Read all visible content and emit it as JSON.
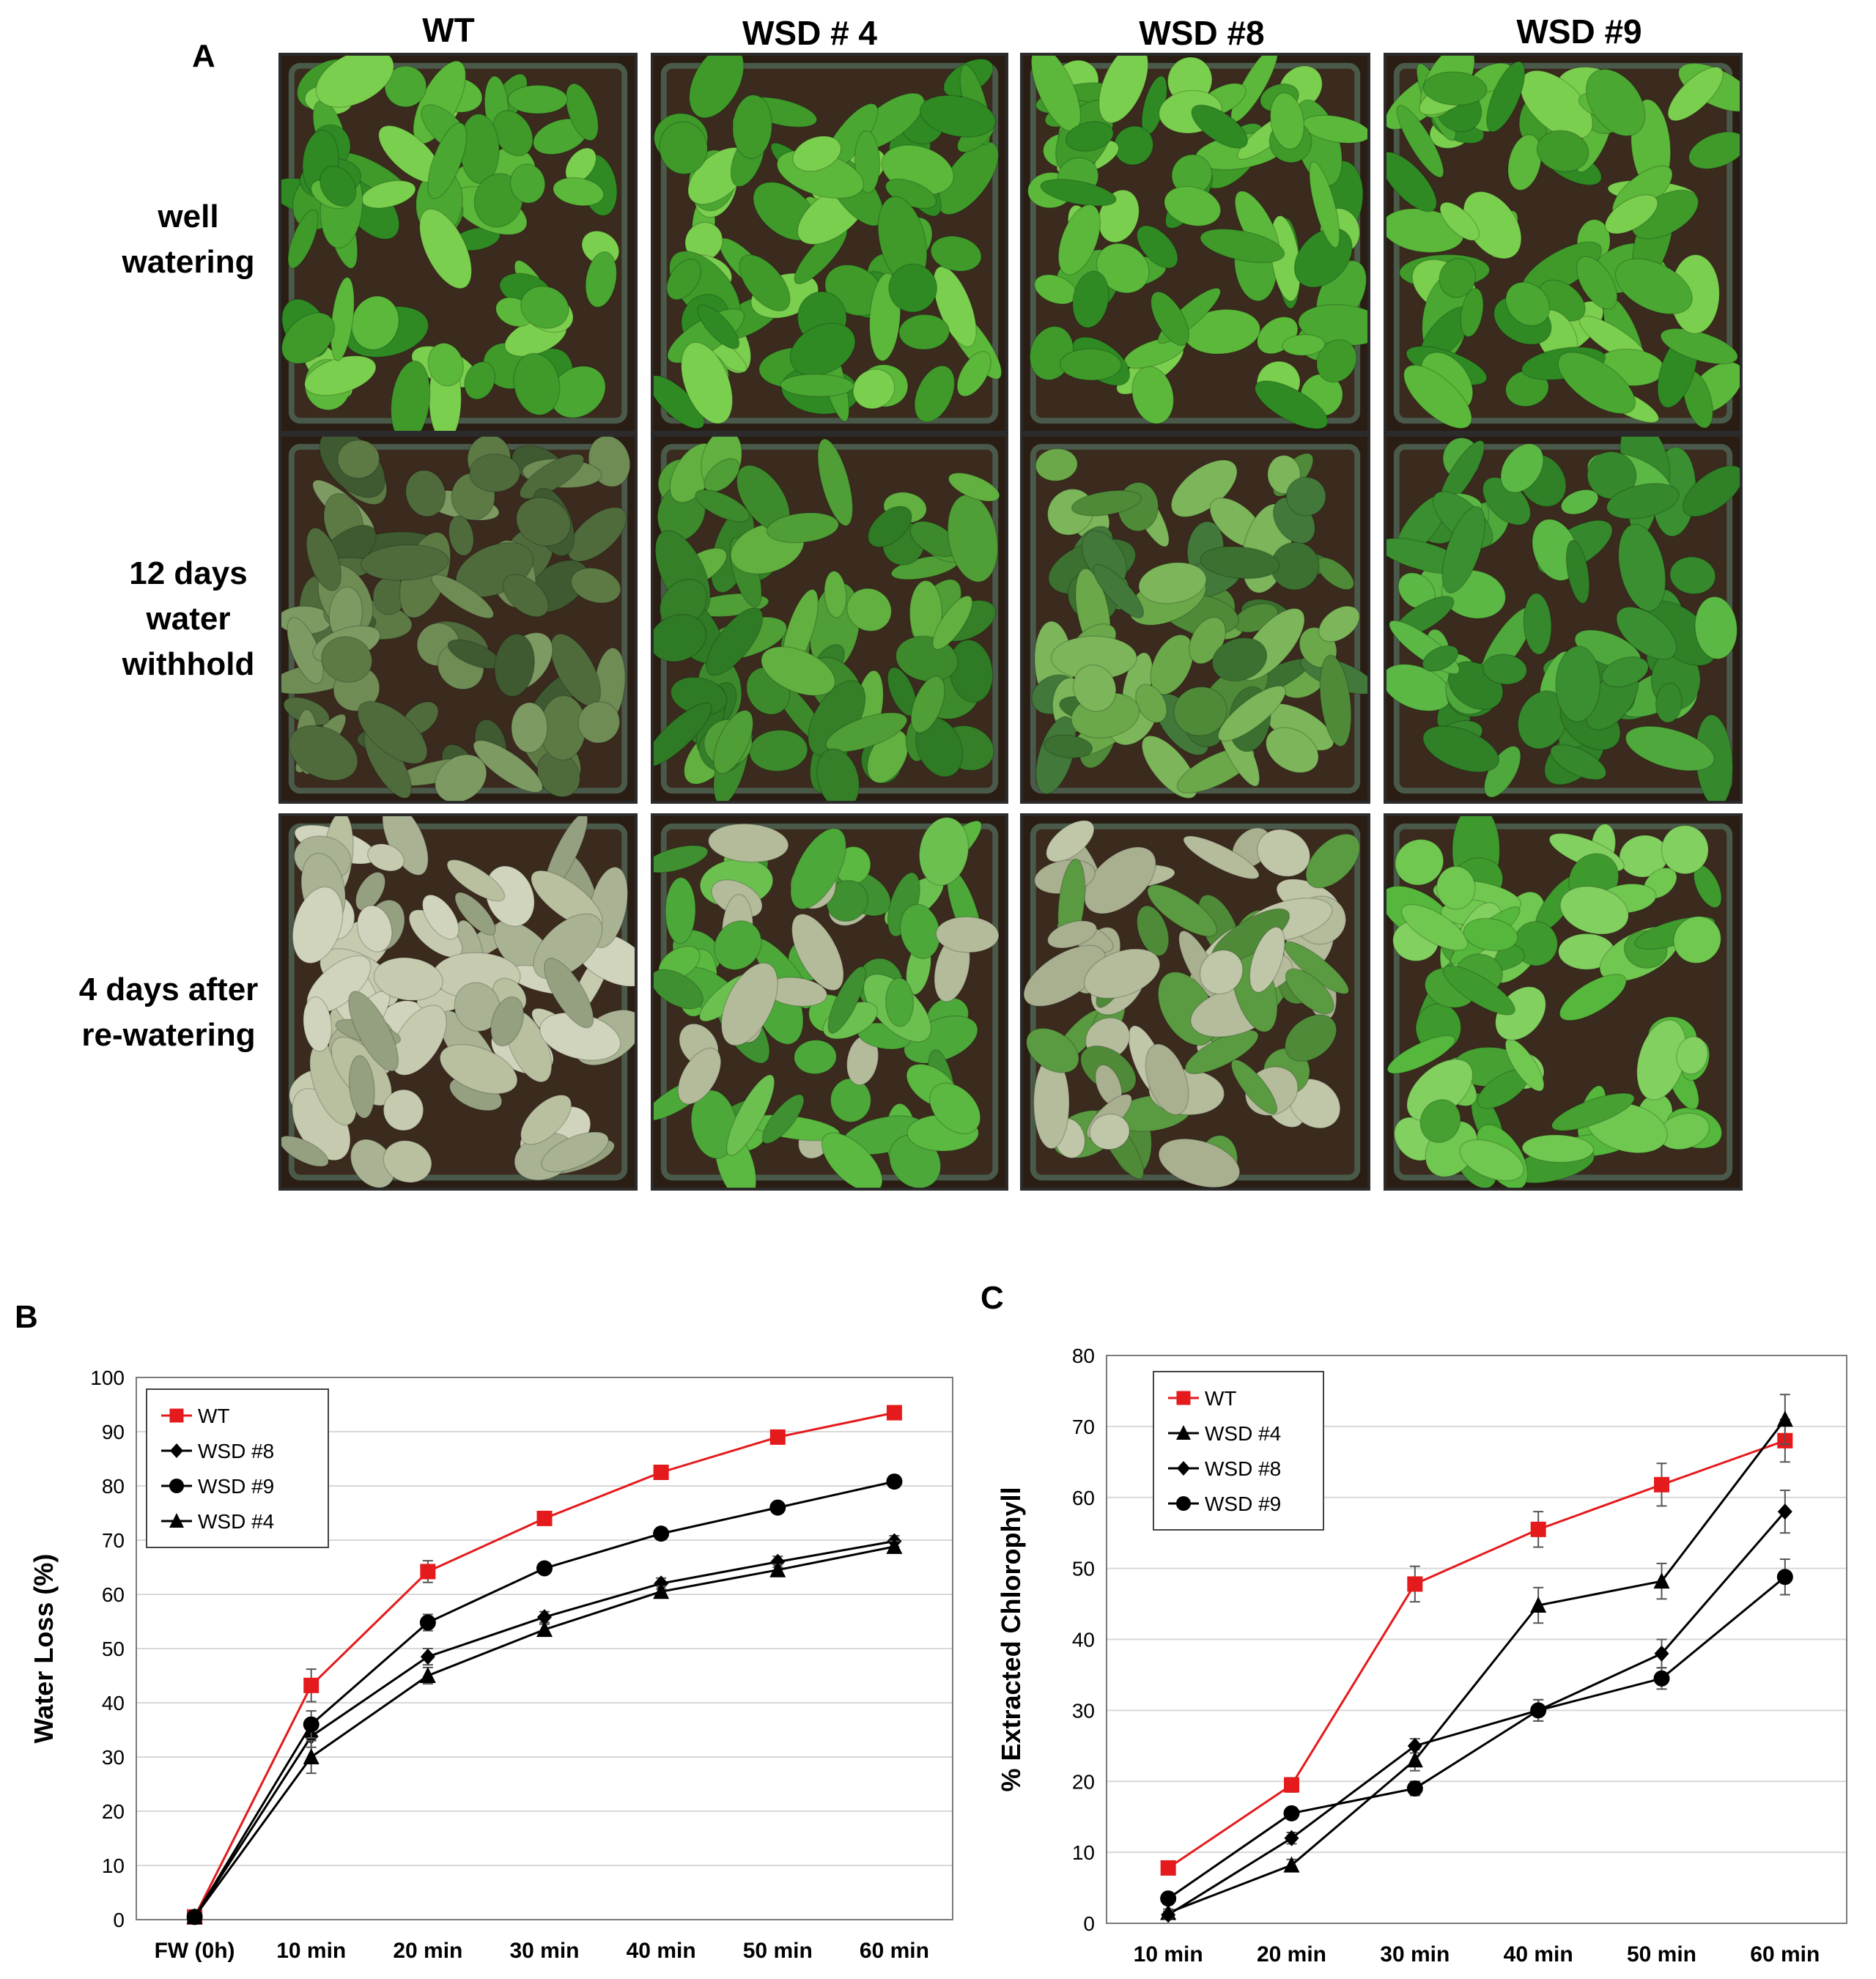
{
  "panel_a": {
    "letter": "A",
    "columns": [
      "WT",
      "WSD # 4",
      "WSD #8",
      "WSD #9"
    ],
    "rows": [
      "well\nwatering",
      "12 days\nwater\nwithhold",
      "4 days after\nre-watering"
    ]
  },
  "chart_data": [
    {
      "panel": "B",
      "type": "line",
      "ylabel": "Water Loss (%)",
      "xlabel": "",
      "categories": [
        "FW (0h)",
        "10 min",
        "20 min",
        "30 min",
        "40 min",
        "50 min",
        "60 min"
      ],
      "ylim": [
        0,
        100
      ],
      "yticks": [
        0,
        10,
        20,
        30,
        40,
        50,
        60,
        70,
        80,
        90,
        100
      ],
      "grid": "horizontal",
      "legend_position": "top-left",
      "series": [
        {
          "name": "WT",
          "marker": "square",
          "color": "#e41a1c",
          "values": [
            0.5,
            43.2,
            64.2,
            74.0,
            82.5,
            89.0,
            93.5
          ],
          "errors": [
            0.5,
            3.0,
            2.0,
            1.0,
            1.0,
            1.0,
            1.0
          ]
        },
        {
          "name": "WSD #8",
          "marker": "diamond",
          "color": "#000000",
          "values": [
            0.5,
            33.8,
            48.5,
            55.8,
            62.0,
            66.0,
            69.8
          ],
          "errors": [
            0,
            2.0,
            1.5,
            1.0,
            1.0,
            1.0,
            1.0
          ]
        },
        {
          "name": "WSD #9",
          "marker": "circle",
          "color": "#000000",
          "values": [
            0.5,
            36.0,
            54.8,
            64.8,
            71.2,
            76.0,
            80.8
          ],
          "errors": [
            0,
            2.5,
            1.5,
            1.0,
            1.0,
            1.0,
            1.0
          ]
        },
        {
          "name": "WSD #4",
          "marker": "triangle",
          "color": "#000000",
          "values": [
            0.5,
            30.0,
            45.0,
            53.5,
            60.5,
            64.5,
            68.8
          ],
          "errors": [
            0,
            3.0,
            1.5,
            1.0,
            1.0,
            1.0,
            1.0
          ]
        }
      ]
    },
    {
      "panel": "C",
      "type": "line",
      "ylabel": "% Extracted Chlorophyll",
      "xlabel": "",
      "categories": [
        "10 min",
        "20 min",
        "30 min",
        "40 min",
        "50 min",
        "60 min"
      ],
      "ylim": [
        0,
        80
      ],
      "yticks": [
        0,
        10,
        20,
        30,
        40,
        50,
        60,
        70,
        80
      ],
      "grid": "horizontal",
      "legend_position": "top-left",
      "series": [
        {
          "name": "WT",
          "marker": "square",
          "color": "#e41a1c",
          "values": [
            7.8,
            19.5,
            47.8,
            55.5,
            61.8,
            68.0
          ],
          "errors": [
            0.8,
            1.0,
            2.5,
            2.5,
            3.0,
            3.0
          ]
        },
        {
          "name": "WSD #4",
          "marker": "triangle",
          "color": "#000000",
          "values": [
            1.5,
            8.2,
            23.0,
            44.8,
            48.2,
            71.0
          ],
          "errors": [
            0.5,
            0.8,
            1.5,
            2.5,
            2.5,
            3.5
          ]
        },
        {
          "name": "WSD #8",
          "marker": "diamond",
          "color": "#000000",
          "values": [
            1.2,
            12.0,
            25.0,
            30.0,
            38.0,
            58.0
          ],
          "errors": [
            0.5,
            0.8,
            1.0,
            1.5,
            2.0,
            3.0
          ]
        },
        {
          "name": "WSD #9",
          "marker": "circle",
          "color": "#000000",
          "values": [
            3.5,
            15.5,
            19.0,
            30.0,
            34.5,
            48.8
          ],
          "errors": [
            0.5,
            0.8,
            1.0,
            1.5,
            1.5,
            2.5
          ]
        }
      ]
    }
  ]
}
